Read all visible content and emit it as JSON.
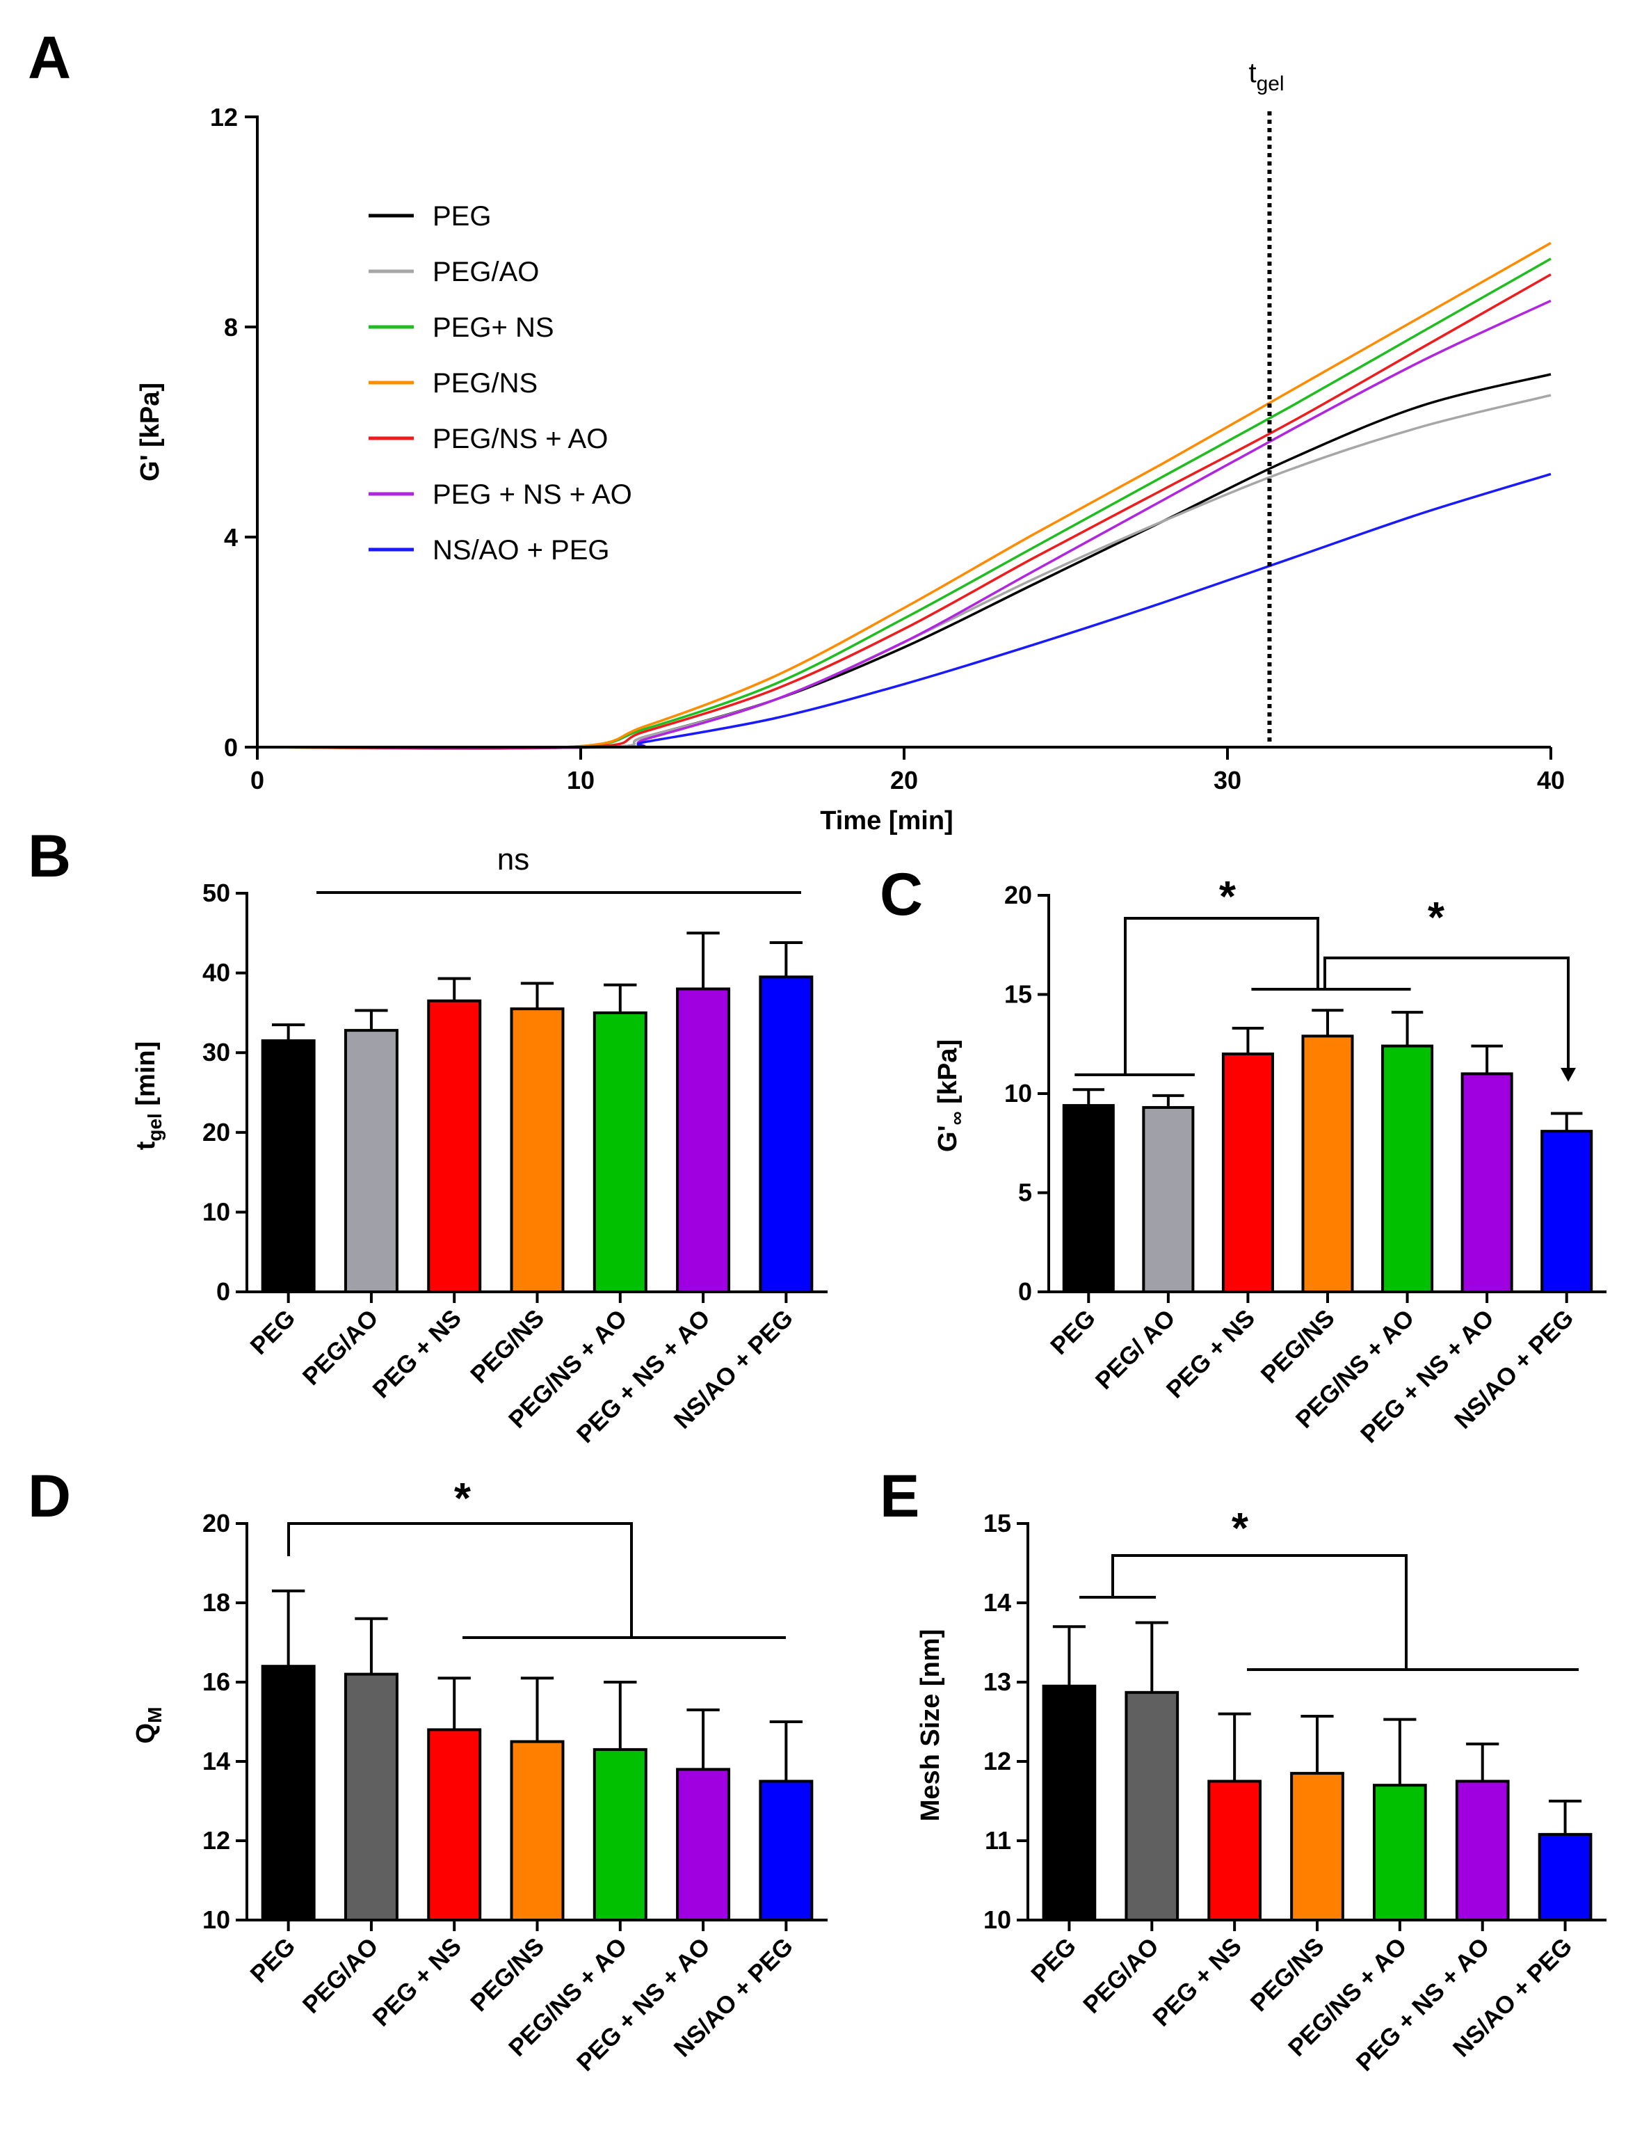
{
  "chart_data": [
    {
      "panel": "A",
      "type": "line",
      "xlabel": "Time [min]",
      "ylabel": "G' [kPa]",
      "xlim": [
        0,
        40
      ],
      "ylim": [
        0,
        12
      ],
      "xticks": [
        "0",
        "10",
        "20",
        "30",
        "40"
      ],
      "yticks": [
        "0",
        "4",
        "8",
        "12"
      ],
      "vline": {
        "x": 31.3,
        "label": "t",
        "label_sub": "gel"
      },
      "series": [
        {
          "name": "PEG",
          "color": "#000000",
          "onset": 10.5,
          "x": [
            12,
            16,
            20,
            24,
            28,
            32,
            36,
            40
          ],
          "y": [
            0.2,
            0.9,
            1.9,
            3.1,
            4.3,
            5.5,
            6.5,
            7.1
          ]
        },
        {
          "name": "PEG/AO",
          "color": "#a6a6a6",
          "onset": 10.5,
          "x": [
            12,
            16,
            20,
            24,
            28,
            32,
            36,
            40
          ],
          "y": [
            0.2,
            0.9,
            2.0,
            3.2,
            4.3,
            5.3,
            6.1,
            6.7
          ]
        },
        {
          "name": "PEG+ NS",
          "color": "#1fbd1f",
          "onset": 9.5,
          "x": [
            12,
            16,
            20,
            24,
            28,
            32,
            36,
            40
          ],
          "y": [
            0.35,
            1.2,
            2.45,
            3.8,
            5.15,
            6.5,
            7.9,
            9.3
          ]
        },
        {
          "name": "PEG/NS",
          "color": "#ff8c00",
          "onset": 9.5,
          "x": [
            12,
            16,
            20,
            24,
            28,
            32,
            36,
            40
          ],
          "y": [
            0.4,
            1.35,
            2.65,
            4.05,
            5.4,
            6.8,
            8.2,
            9.6
          ]
        },
        {
          "name": "PEG/NS + AO",
          "color": "#ee1c1c",
          "onset": 10,
          "x": [
            12,
            16,
            20,
            24,
            28,
            32,
            36,
            40
          ],
          "y": [
            0.3,
            1.1,
            2.25,
            3.6,
            4.9,
            6.2,
            7.6,
            9.0
          ]
        },
        {
          "name": "PEG + NS + AO",
          "color": "#b026e0",
          "onset": 11,
          "x": [
            12,
            16,
            20,
            24,
            28,
            32,
            36,
            40
          ],
          "y": [
            0.15,
            0.9,
            2.0,
            3.35,
            4.7,
            6.05,
            7.35,
            8.5
          ]
        },
        {
          "name": "NS/AO + PEG",
          "color": "#1a1aff",
          "onset": 11,
          "x": [
            12,
            16,
            20,
            24,
            28,
            32,
            36,
            40
          ],
          "y": [
            0.1,
            0.55,
            1.2,
            1.95,
            2.75,
            3.6,
            4.45,
            5.2
          ]
        }
      ]
    },
    {
      "panel": "B",
      "type": "bar",
      "ylabel": "t",
      "ylabel_sub": "gel",
      "ylabel_unit": " [min]",
      "ylim": [
        0,
        50
      ],
      "yticks": [
        "0",
        "10",
        "20",
        "30",
        "40",
        "50"
      ],
      "categories": [
        "PEG",
        "PEG/AO",
        "PEG + NS",
        "PEG/NS",
        "PEG/NS + AO",
        "PEG + NS + AO",
        "NS/AO + PEG"
      ],
      "values": [
        31.5,
        32.8,
        36.5,
        35.5,
        35.0,
        38.0,
        39.5
      ],
      "errors": [
        2.0,
        2.5,
        2.8,
        3.2,
        3.5,
        7.0,
        4.3
      ],
      "colors": [
        "#000000",
        "#a0a0a8",
        "#ff0000",
        "#ff8000",
        "#00c000",
        "#a000e0",
        "#0000ff"
      ],
      "annotations": [
        {
          "text": "ns"
        }
      ]
    },
    {
      "panel": "C",
      "type": "bar",
      "ylabel": "G'",
      "ylabel_sub": "∞",
      "ylabel_unit": " [kPa]",
      "ylim": [
        0,
        20
      ],
      "yticks": [
        "0",
        "5",
        "10",
        "15",
        "20"
      ],
      "categories": [
        "PEG",
        "PEG/ AO",
        "PEG + NS",
        "PEG/NS",
        "PEG/NS + AO",
        "PEG + NS + AO",
        "NS/AO + PEG"
      ],
      "values": [
        9.4,
        9.3,
        12.0,
        12.9,
        12.4,
        11.0,
        8.1
      ],
      "errors": [
        0.8,
        0.6,
        1.3,
        1.3,
        1.7,
        1.4,
        0.9
      ],
      "colors": [
        "#000000",
        "#a0a0a8",
        "#ff0000",
        "#ff8000",
        "#00c000",
        "#a000e0",
        "#0000ff"
      ],
      "annotations": [
        {
          "text": "*"
        },
        {
          "text": "*"
        }
      ]
    },
    {
      "panel": "D",
      "type": "bar",
      "ylabel": "Q",
      "ylabel_sub": "M",
      "ylabel_unit": "",
      "ylim": [
        10,
        20
      ],
      "yticks": [
        "10",
        "12",
        "14",
        "16",
        "18",
        "20"
      ],
      "categories": [
        "PEG",
        "PEG/AO",
        "PEG + NS",
        "PEG/NS",
        "PEG/NS + AO",
        "PEG + NS + AO",
        "NS/AO + PEG"
      ],
      "values": [
        16.4,
        16.2,
        14.8,
        14.5,
        14.3,
        13.8,
        13.5
      ],
      "errors": [
        1.9,
        1.4,
        1.3,
        1.6,
        1.7,
        1.5,
        1.5
      ],
      "colors": [
        "#000000",
        "#606060",
        "#ff0000",
        "#ff8000",
        "#00c000",
        "#a000e0",
        "#0000ff"
      ],
      "annotations": [
        {
          "text": "*"
        }
      ]
    },
    {
      "panel": "E",
      "type": "bar",
      "ylabel": "Mesh Size [nm]",
      "ylabel_sub": "",
      "ylabel_unit": "",
      "ylim": [
        10,
        15
      ],
      "yticks": [
        "10",
        "11",
        "12",
        "13",
        "14",
        "15"
      ],
      "categories": [
        "PEG",
        "PEG/AO",
        "PEG + NS",
        "PEG/NS",
        "PEG/NS + AO",
        "PEG + NS + AO",
        "NS/AO + PEG"
      ],
      "values": [
        12.95,
        12.87,
        11.75,
        11.85,
        11.7,
        11.75,
        11.08
      ],
      "errors": [
        0.75,
        0.88,
        0.85,
        0.72,
        0.83,
        0.47,
        0.42
      ],
      "colors": [
        "#000000",
        "#606060",
        "#ff0000",
        "#ff8000",
        "#00c000",
        "#a000e0",
        "#0000ff"
      ],
      "annotations": [
        {
          "text": "*"
        }
      ]
    }
  ]
}
